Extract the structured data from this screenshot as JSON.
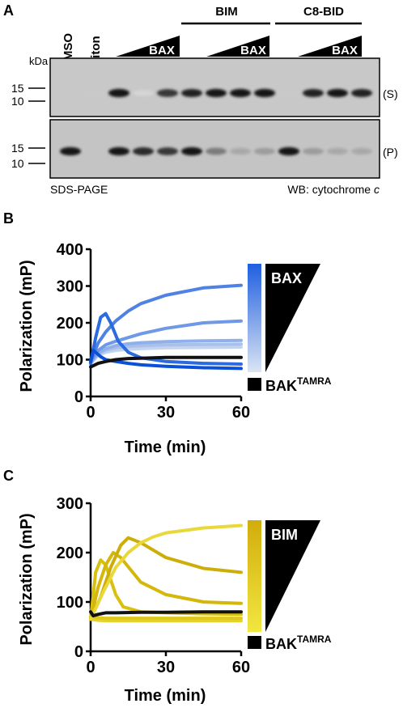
{
  "panel_a": {
    "letter": "A",
    "kda": "kDa",
    "lanes": [
      "DMSO",
      "Triton"
    ],
    "groups": [
      "BIM",
      "C8-BID"
    ],
    "bax": "BAX",
    "marker15": "15",
    "marker10": "10",
    "blot_s": "(S)",
    "blot_p": "(P)",
    "footer_left": "SDS-PAGE",
    "footer_right_prefix": "WB: cytochrome ",
    "footer_right_italic": "c",
    "bands_s": [
      {
        "lane": 1,
        "intensity": 0.15
      },
      {
        "lane": 2,
        "intensity": 0.95
      },
      {
        "lane": 3,
        "intensity": 0.1
      },
      {
        "lane": 4,
        "intensity": 0.8
      },
      {
        "lane": 5,
        "intensity": 0.9
      },
      {
        "lane": 6,
        "intensity": 0.95
      },
      {
        "lane": 7,
        "intensity": 0.95
      },
      {
        "lane": 8,
        "intensity": 0.95
      },
      {
        "lane": 9,
        "intensity": 0.15
      },
      {
        "lane": 10,
        "intensity": 0.9
      },
      {
        "lane": 11,
        "intensity": 0.95
      },
      {
        "lane": 12,
        "intensity": 0.9
      }
    ],
    "bands_p": [
      {
        "lane": 0,
        "intensity": 0.95
      },
      {
        "lane": 2,
        "intensity": 0.95
      },
      {
        "lane": 3,
        "intensity": 0.85
      },
      {
        "lane": 4,
        "intensity": 0.8
      },
      {
        "lane": 5,
        "intensity": 0.95
      },
      {
        "lane": 6,
        "intensity": 0.5
      },
      {
        "lane": 7,
        "intensity": 0.3
      },
      {
        "lane": 8,
        "intensity": 0.35
      },
      {
        "lane": 9,
        "intensity": 0.95
      },
      {
        "lane": 10,
        "intensity": 0.35
      },
      {
        "lane": 11,
        "intensity": 0.3
      },
      {
        "lane": 12,
        "intensity": 0.3
      }
    ]
  },
  "chart_data": [
    {
      "type": "line",
      "panel": "B",
      "ylabel": "Polarization (mP)",
      "xlabel": "Time (min)",
      "xlim": [
        0,
        60
      ],
      "ylim": [
        0,
        400
      ],
      "xticks": [
        0,
        30,
        60
      ],
      "yticks": [
        0,
        100,
        200,
        300,
        400
      ],
      "legend_gradient_label": "BAX",
      "legend_black_label": "BAK",
      "legend_black_superscript": "TAMRA",
      "colors": [
        "#c4d4ee",
        "#a9c1ea",
        "#8fb0ea",
        "#6f98e6",
        "#4f82e2",
        "#2b6adf",
        "#0c50d8",
        "#111111"
      ],
      "series": [
        {
          "x": [
            0,
            3,
            6,
            10,
            15,
            20,
            30,
            45,
            60
          ],
          "values": [
            90,
            112,
            120,
            125,
            128,
            130,
            132,
            133,
            134
          ]
        },
        {
          "x": [
            0,
            3,
            6,
            10,
            15,
            20,
            30,
            45,
            60
          ],
          "values": [
            90,
            115,
            125,
            132,
            136,
            138,
            140,
            141,
            142
          ]
        },
        {
          "x": [
            0,
            3,
            6,
            10,
            15,
            20,
            30,
            45,
            60
          ],
          "values": [
            92,
            118,
            130,
            138,
            143,
            146,
            149,
            151,
            152
          ]
        },
        {
          "x": [
            0,
            3,
            6,
            10,
            15,
            20,
            30,
            45,
            60
          ],
          "values": [
            95,
            125,
            140,
            150,
            160,
            170,
            185,
            200,
            205
          ]
        },
        {
          "x": [
            0,
            3,
            6,
            10,
            15,
            20,
            30,
            45,
            60
          ],
          "values": [
            95,
            145,
            175,
            205,
            232,
            252,
            275,
            295,
            302
          ]
        },
        {
          "x": [
            0,
            2,
            4,
            6,
            8,
            11,
            15,
            20,
            30,
            45,
            60
          ],
          "values": [
            90,
            160,
            215,
            225,
            200,
            150,
            120,
            105,
            95,
            90,
            88
          ]
        },
        {
          "x": [
            0,
            1,
            2,
            4,
            6,
            10,
            15,
            20,
            30,
            45,
            60
          ],
          "values": [
            95,
            125,
            120,
            108,
            100,
            95,
            90,
            86,
            82,
            78,
            76
          ]
        },
        {
          "x": [
            0,
            3,
            6,
            10,
            15,
            20,
            30,
            45,
            60
          ],
          "values": [
            80,
            90,
            95,
            100,
            103,
            104,
            106,
            106,
            106
          ]
        }
      ]
    },
    {
      "type": "line",
      "panel": "C",
      "ylabel": "Polarization (mP)",
      "xlabel": "Time (min)",
      "xlim": [
        0,
        60
      ],
      "ylim": [
        0,
        300
      ],
      "xticks": [
        0,
        30,
        60
      ],
      "yticks": [
        0,
        100,
        200,
        300
      ],
      "legend_gradient_label": "BIM",
      "legend_black_label": "BAK",
      "legend_black_superscript": "TAMRA",
      "colors": [
        "#e6d22a",
        "#e0c81a",
        "#d9bf0e",
        "#d4b70a",
        "#cdae08",
        "#e8d83a",
        "#111111"
      ],
      "series": [
        {
          "x": [
            0,
            3,
            6,
            10,
            15,
            20,
            30,
            45,
            60
          ],
          "values": [
            65,
            63,
            62,
            62,
            62,
            62,
            62,
            62,
            62
          ]
        },
        {
          "x": [
            0,
            3,
            6,
            10,
            15,
            20,
            30,
            45,
            60
          ],
          "values": [
            70,
            68,
            67,
            67,
            67,
            67,
            67,
            67,
            67
          ]
        },
        {
          "x": [
            0,
            2,
            4,
            6,
            8,
            10,
            13,
            20,
            30,
            45,
            60
          ],
          "values": [
            65,
            160,
            185,
            175,
            145,
            115,
            90,
            80,
            78,
            76,
            75
          ]
        },
        {
          "x": [
            0,
            3,
            6,
            9,
            12,
            16,
            20,
            30,
            45,
            60
          ],
          "values": [
            65,
            130,
            175,
            200,
            190,
            165,
            140,
            115,
            100,
            97
          ]
        },
        {
          "x": [
            0,
            4,
            8,
            12,
            15,
            20,
            30,
            45,
            60
          ],
          "values": [
            65,
            110,
            170,
            215,
            230,
            220,
            190,
            168,
            160
          ]
        },
        {
          "x": [
            0,
            5,
            10,
            15,
            20,
            25,
            30,
            45,
            60
          ],
          "values": [
            65,
            120,
            170,
            200,
            220,
            232,
            240,
            250,
            255
          ]
        },
        {
          "x": [
            0,
            1,
            3,
            6,
            10,
            20,
            30,
            45,
            60
          ],
          "values": [
            80,
            72,
            75,
            78,
            78,
            79,
            79,
            80,
            80
          ]
        }
      ]
    }
  ]
}
